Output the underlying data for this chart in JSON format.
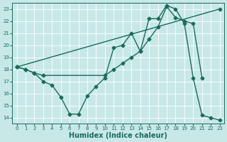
{
  "bg_color": "#c8e8e8",
  "grid_color": "#b0d8d8",
  "line_color": "#1a6b5a",
  "marker": "D",
  "markersize": 2.5,
  "linewidth": 1.0,
  "xlabel": "Humidex (Indice chaleur)",
  "xlim": [
    -0.5,
    23.5
  ],
  "ylim": [
    13.5,
    23.5
  ],
  "xticks": [
    0,
    1,
    2,
    3,
    4,
    5,
    6,
    7,
    8,
    9,
    10,
    11,
    12,
    13,
    14,
    15,
    16,
    17,
    18,
    19,
    20,
    21,
    22,
    23
  ],
  "yticks": [
    14,
    15,
    16,
    17,
    18,
    19,
    20,
    21,
    22,
    23
  ],
  "line1_x": [
    0,
    1,
    2,
    3,
    4,
    5,
    6,
    7,
    8,
    9,
    10,
    11,
    12,
    13,
    14,
    15,
    16,
    17,
    18,
    19,
    20,
    21,
    22,
    23
  ],
  "line1_y": [
    18.2,
    18.0,
    17.7,
    17.0,
    16.7,
    15.7,
    14.3,
    14.3,
    15.8,
    16.6,
    17.3,
    19.8,
    20.0,
    21.0,
    19.5,
    22.2,
    22.2,
    23.3,
    23.0,
    21.8,
    17.3,
    14.2,
    14.0,
    13.8
  ],
  "line2_x": [
    0,
    23
  ],
  "line2_y": [
    18.2,
    23.0
  ],
  "line3_x": [
    0,
    1,
    2,
    3,
    10,
    11,
    12,
    13,
    14,
    15,
    16,
    17,
    18,
    19,
    20,
    21
  ],
  "line3_y": [
    18.2,
    18.0,
    17.7,
    17.5,
    17.5,
    18.0,
    18.5,
    19.0,
    19.5,
    20.5,
    21.5,
    23.2,
    22.3,
    22.0,
    21.8,
    17.3
  ],
  "xlabel_fontsize": 7
}
